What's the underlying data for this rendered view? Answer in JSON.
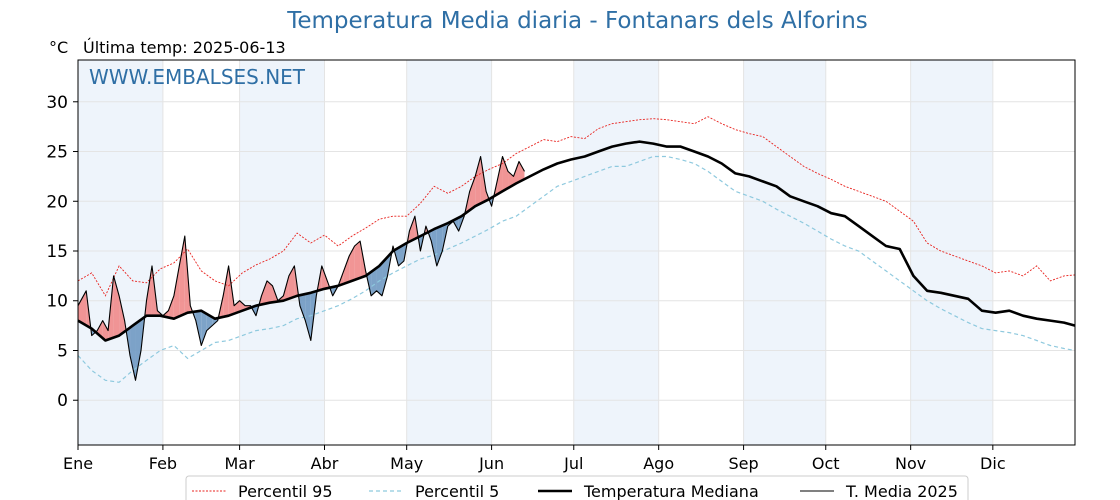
{
  "header": {
    "title": "Temperatura Media diaria - Fontanars dels Alforins",
    "unit": "°C",
    "last_temp": "Última temp: 2025-06-13",
    "watermark": "WWW.EMBALSES.NET"
  },
  "chart_data": {
    "type": "line",
    "title": "Temperatura Media diaria - Fontanars dels Alforins",
    "ylabel": "°C",
    "ylim": [
      -4.5,
      34.2
    ],
    "yticks": [
      0,
      5,
      10,
      15,
      20,
      25,
      30
    ],
    "xlim": [
      1,
      365
    ],
    "month_labels": [
      "Ene",
      "Feb",
      "Mar",
      "Abr",
      "May",
      "Jun",
      "Jul",
      "Ago",
      "Sep",
      "Oct",
      "Nov",
      "Dic"
    ],
    "month_start_days": [
      1,
      32,
      60,
      91,
      121,
      152,
      182,
      213,
      244,
      274,
      305,
      335
    ],
    "grid": true,
    "legend_placement": "bottom-center",
    "colors": {
      "p95": "#e8231f",
      "p5": "#8ec9de",
      "median": "#000000",
      "year2025": "#000000",
      "above_fill": "#f08a8a",
      "below_fill": "#6f99c2",
      "month_band": "#eef4fb",
      "title": "#2f6fa5"
    },
    "series": [
      {
        "name": "Percentil 95",
        "style": "dotted-red",
        "day": [
          1,
          6,
          11,
          16,
          21,
          26,
          31,
          36,
          41,
          46,
          51,
          56,
          61,
          66,
          71,
          76,
          81,
          86,
          91,
          96,
          101,
          106,
          111,
          116,
          121,
          126,
          131,
          136,
          141,
          146,
          151,
          156,
          161,
          166,
          171,
          176,
          181,
          186,
          191,
          196,
          201,
          206,
          211,
          216,
          221,
          226,
          231,
          236,
          241,
          246,
          251,
          256,
          261,
          266,
          271,
          276,
          281,
          286,
          291,
          296,
          301,
          306,
          311,
          316,
          321,
          326,
          331,
          336,
          341,
          346,
          351,
          356,
          361,
          365
        ],
        "values": [
          12.0,
          12.8,
          10.5,
          13.5,
          12.0,
          11.8,
          13.2,
          13.8,
          15.2,
          13.0,
          12.0,
          11.5,
          12.8,
          13.6,
          14.2,
          15.0,
          16.8,
          15.8,
          16.6,
          15.5,
          16.5,
          17.3,
          18.2,
          18.5,
          18.5,
          19.8,
          21.5,
          20.8,
          21.5,
          22.5,
          23.2,
          23.8,
          24.8,
          25.5,
          26.2,
          26.0,
          26.5,
          26.3,
          27.3,
          27.8,
          28.0,
          28.2,
          28.3,
          28.2,
          28.0,
          27.8,
          28.5,
          27.8,
          27.2,
          26.8,
          26.5,
          25.5,
          24.5,
          23.5,
          22.8,
          22.2,
          21.5,
          21.0,
          20.5,
          20.0,
          19.0,
          18.0,
          15.8,
          15.0,
          14.5,
          14.0,
          13.5,
          12.8,
          13.0,
          12.5,
          13.5,
          12.0,
          12.5,
          12.6
        ]
      },
      {
        "name": "Percentil 5",
        "style": "dashed-lightblue",
        "day": [
          1,
          6,
          11,
          16,
          21,
          26,
          31,
          36,
          41,
          46,
          51,
          56,
          61,
          66,
          71,
          76,
          81,
          86,
          91,
          96,
          101,
          106,
          111,
          116,
          121,
          126,
          131,
          136,
          141,
          146,
          151,
          156,
          161,
          166,
          171,
          176,
          181,
          186,
          191,
          196,
          201,
          206,
          211,
          216,
          221,
          226,
          231,
          236,
          241,
          246,
          251,
          256,
          261,
          266,
          271,
          276,
          281,
          286,
          291,
          296,
          301,
          306,
          311,
          316,
          321,
          326,
          331,
          336,
          341,
          346,
          351,
          356,
          361,
          365
        ],
        "values": [
          4.5,
          3.0,
          2.0,
          1.8,
          3.0,
          4.0,
          5.0,
          5.5,
          4.2,
          5.0,
          5.8,
          6.0,
          6.5,
          7.0,
          7.2,
          7.5,
          8.2,
          8.5,
          9.0,
          9.5,
          10.2,
          11.0,
          12.0,
          12.8,
          13.5,
          14.2,
          14.6,
          15.2,
          15.8,
          16.5,
          17.2,
          18.0,
          18.5,
          19.5,
          20.5,
          21.5,
          22.0,
          22.5,
          23.0,
          23.5,
          23.5,
          24.0,
          24.5,
          24.5,
          24.2,
          23.8,
          23.0,
          22.0,
          21.0,
          20.5,
          20.0,
          19.2,
          18.5,
          17.8,
          17.0,
          16.2,
          15.5,
          15.0,
          14.0,
          13.0,
          12.0,
          11.0,
          10.0,
          9.2,
          8.5,
          7.8,
          7.2,
          7.0,
          6.8,
          6.5,
          6.0,
          5.5,
          5.2,
          5.0
        ]
      },
      {
        "name": "Temperatura Mediana",
        "style": "thick-black",
        "day": [
          1,
          6,
          11,
          16,
          21,
          26,
          31,
          36,
          41,
          46,
          51,
          56,
          61,
          66,
          71,
          76,
          81,
          86,
          91,
          96,
          101,
          106,
          111,
          116,
          121,
          126,
          131,
          136,
          141,
          146,
          151,
          156,
          161,
          166,
          171,
          176,
          181,
          186,
          191,
          196,
          201,
          206,
          211,
          216,
          221,
          226,
          231,
          236,
          241,
          246,
          251,
          256,
          261,
          266,
          271,
          276,
          281,
          286,
          291,
          296,
          301,
          306,
          311,
          316,
          321,
          326,
          331,
          336,
          341,
          346,
          351,
          356,
          361,
          365
        ],
        "values": [
          8.0,
          7.2,
          6.0,
          6.5,
          7.5,
          8.5,
          8.5,
          8.2,
          8.8,
          9.0,
          8.2,
          8.5,
          9.0,
          9.5,
          9.8,
          10.0,
          10.5,
          10.8,
          11.2,
          11.5,
          12.0,
          12.5,
          13.5,
          15.0,
          15.8,
          16.5,
          17.2,
          17.8,
          18.5,
          19.5,
          20.2,
          21.0,
          21.8,
          22.5,
          23.2,
          23.8,
          24.2,
          24.5,
          25.0,
          25.5,
          25.8,
          26.0,
          25.8,
          25.5,
          25.5,
          25.0,
          24.5,
          23.8,
          22.8,
          22.5,
          22.0,
          21.5,
          20.5,
          20.0,
          19.5,
          18.8,
          18.5,
          17.5,
          16.5,
          15.5,
          15.2,
          12.5,
          11.0,
          10.8,
          10.5,
          10.2,
          9.0,
          8.8,
          9.0,
          8.5,
          8.2,
          8.0,
          7.8,
          7.5
        ]
      },
      {
        "name": "T. Media 2025",
        "style": "thin-black",
        "day": [
          1,
          4,
          6,
          8,
          10,
          12,
          14,
          16,
          18,
          20,
          22,
          24,
          26,
          28,
          30,
          32,
          34,
          36,
          38,
          40,
          42,
          44,
          46,
          48,
          50,
          52,
          54,
          56,
          58,
          60,
          62,
          64,
          66,
          68,
          70,
          72,
          74,
          76,
          78,
          80,
          82,
          84,
          86,
          88,
          90,
          92,
          94,
          96,
          98,
          100,
          102,
          104,
          106,
          108,
          110,
          112,
          114,
          116,
          118,
          120,
          122,
          124,
          126,
          128,
          130,
          132,
          134,
          136,
          138,
          140,
          142,
          144,
          146,
          148,
          150,
          152,
          154,
          156,
          158,
          160,
          162,
          164
        ],
        "values": [
          9.5,
          11.0,
          6.5,
          7.0,
          8.0,
          7.0,
          12.5,
          10.5,
          8.0,
          4.5,
          2.0,
          5.0,
          10.0,
          13.5,
          9.0,
          8.5,
          9.0,
          10.5,
          13.5,
          16.5,
          9.5,
          8.0,
          5.5,
          7.0,
          7.5,
          8.0,
          10.5,
          13.5,
          9.5,
          10.0,
          9.5,
          9.5,
          8.5,
          10.5,
          12.0,
          11.5,
          10.0,
          10.5,
          12.5,
          13.5,
          9.5,
          8.0,
          6.0,
          10.5,
          13.5,
          12.0,
          10.5,
          11.5,
          13.0,
          14.5,
          15.5,
          16.0,
          13.0,
          10.5,
          11.0,
          10.5,
          12.5,
          15.5,
          13.5,
          14.0,
          17.0,
          18.5,
          15.0,
          17.5,
          16.0,
          13.5,
          15.0,
          17.5,
          18.0,
          17.0,
          18.5,
          21.0,
          22.5,
          24.5,
          21.0,
          19.5,
          22.0,
          24.5,
          23.0,
          22.5,
          24.0,
          23.0
        ]
      }
    ]
  }
}
